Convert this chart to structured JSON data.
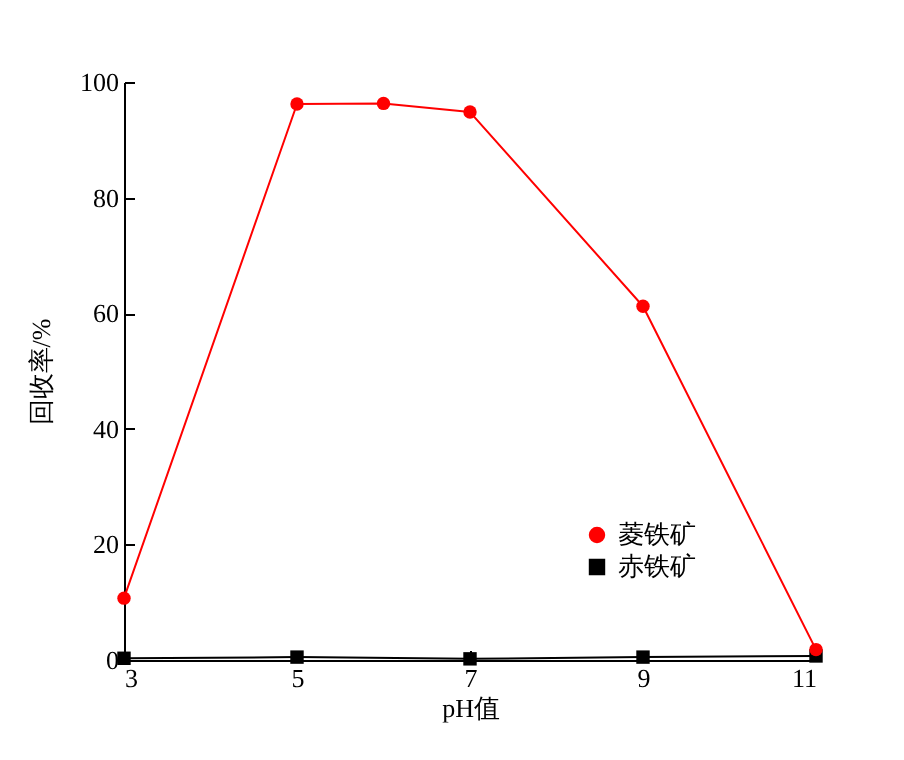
{
  "chart_data": {
    "type": "line",
    "xlabel": "pH值",
    "ylabel": "回收率/%",
    "x": [
      3,
      5,
      6,
      7,
      9,
      11
    ],
    "series": [
      {
        "name": "菱铁矿",
        "color": "#ff0000",
        "marker": "circle",
        "values": [
          10.7,
          96.2,
          96.3,
          94.8,
          61.2,
          1.8
        ]
      },
      {
        "name": "赤铁矿",
        "color": "#000000",
        "marker": "square",
        "x": [
          3,
          5,
          7,
          9,
          11
        ],
        "values": [
          0.3,
          0.5,
          0.2,
          0.5,
          0.7
        ]
      }
    ],
    "xlim": [
      3,
      11
    ],
    "xticks": [
      3,
      5,
      7,
      9,
      11
    ],
    "ylim": [
      0,
      100
    ],
    "yticks": [
      0,
      20,
      40,
      60,
      80,
      100
    ],
    "grid": false,
    "legend": "bottom right",
    "line_style": "solid"
  }
}
